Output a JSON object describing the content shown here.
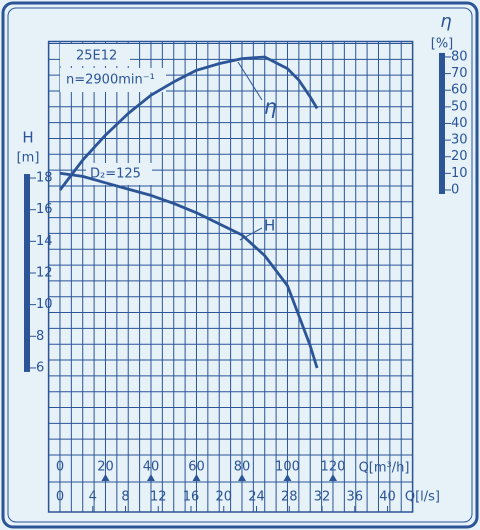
{
  "chart_data": {
    "type": "line",
    "model": "25E12",
    "speed": "n=2900min⁻¹",
    "diameter": "D₂=125",
    "x_label": "Q[m³/h]",
    "x2_label": "Q[l/s]",
    "y_label": "H",
    "y_unit": "[m]",
    "y2_label": "η",
    "y2_unit": "[%]",
    "x": [
      0,
      10,
      20,
      30,
      40,
      50,
      60,
      70,
      80,
      90,
      100,
      105,
      110,
      113
    ],
    "series": [
      {
        "name": "H",
        "color": "#2b5597",
        "values": [
          18.3,
          18.1,
          17.7,
          17.3,
          16.9,
          16.4,
          15.8,
          15.1,
          14.4,
          13.1,
          11.2,
          9.3,
          7.4,
          6.0
        ]
      },
      {
        "name": "η",
        "color": "#2b5597",
        "axis": "y2",
        "values": [
          0,
          18,
          33,
          46,
          57,
          65,
          72,
          76,
          79,
          80,
          73,
          66,
          56,
          49
        ]
      }
    ],
    "xlim": [
      -5,
      155
    ],
    "xticks": [
      0,
      20,
      40,
      60,
      80,
      100,
      120
    ],
    "x2lim": [
      -1.39,
      43.06
    ],
    "x2ticks": [
      0,
      4,
      8,
      12,
      16,
      20,
      24,
      28,
      32,
      36,
      40
    ],
    "ylim": [
      0.5,
      26.5
    ],
    "yticks": [
      6,
      8,
      10,
      12,
      14,
      16,
      18
    ],
    "y2lim": [
      -159.4,
      88.1
    ],
    "y2ticks": [
      0,
      10,
      20,
      30,
      40,
      50,
      60,
      70,
      80
    ],
    "grid": true
  }
}
